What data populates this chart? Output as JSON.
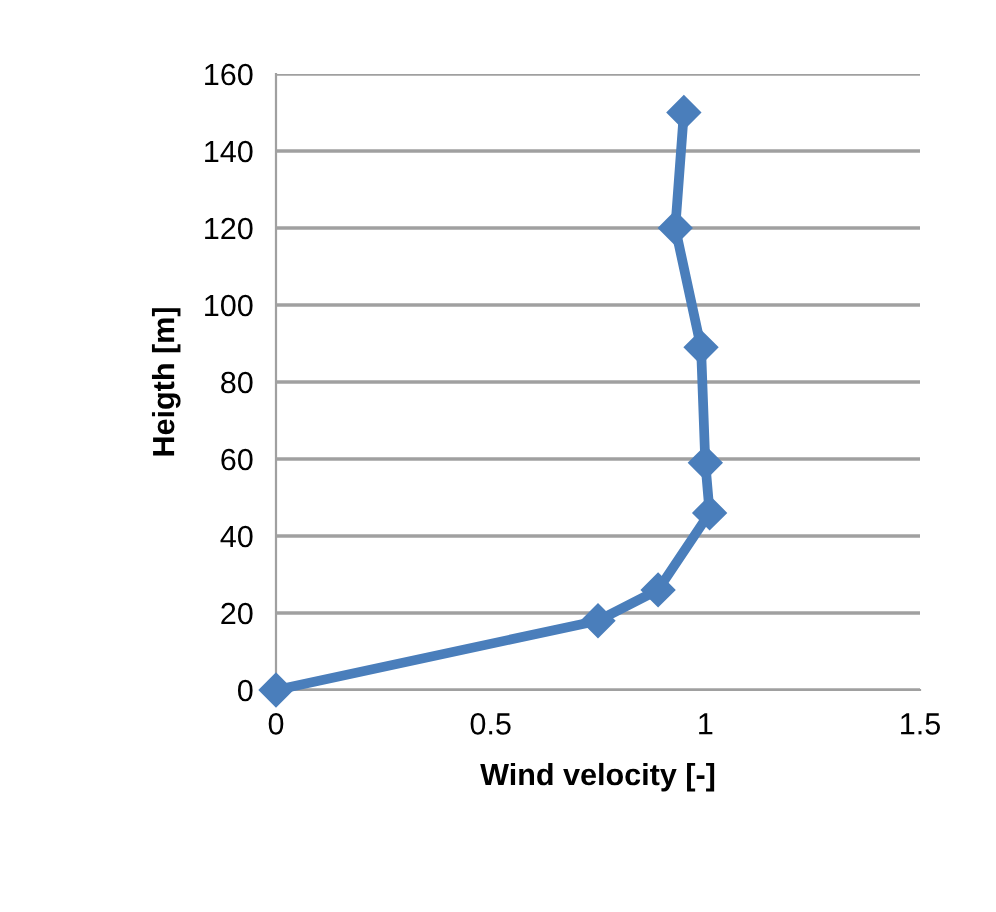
{
  "chart_data": {
    "type": "line",
    "xlabel": "Wind velocity [-]",
    "ylabel": "Heigth [m]",
    "xlim": [
      0,
      1.5
    ],
    "xticks": [
      0,
      0.5,
      1,
      1.5
    ],
    "ylim": [
      0,
      160
    ],
    "yticks": [
      0,
      20,
      40,
      60,
      80,
      100,
      120,
      140,
      160
    ],
    "grid": "y",
    "marker": "diamond",
    "line_style": "solid",
    "series": [
      {
        "color": "#4a7ebb",
        "x": [
          0,
          0.75,
          0.89,
          1.01,
          1.0,
          0.99,
          0.93,
          0.95
        ],
        "values": [
          0,
          18,
          26,
          46,
          59,
          89,
          120,
          150
        ]
      }
    ]
  }
}
